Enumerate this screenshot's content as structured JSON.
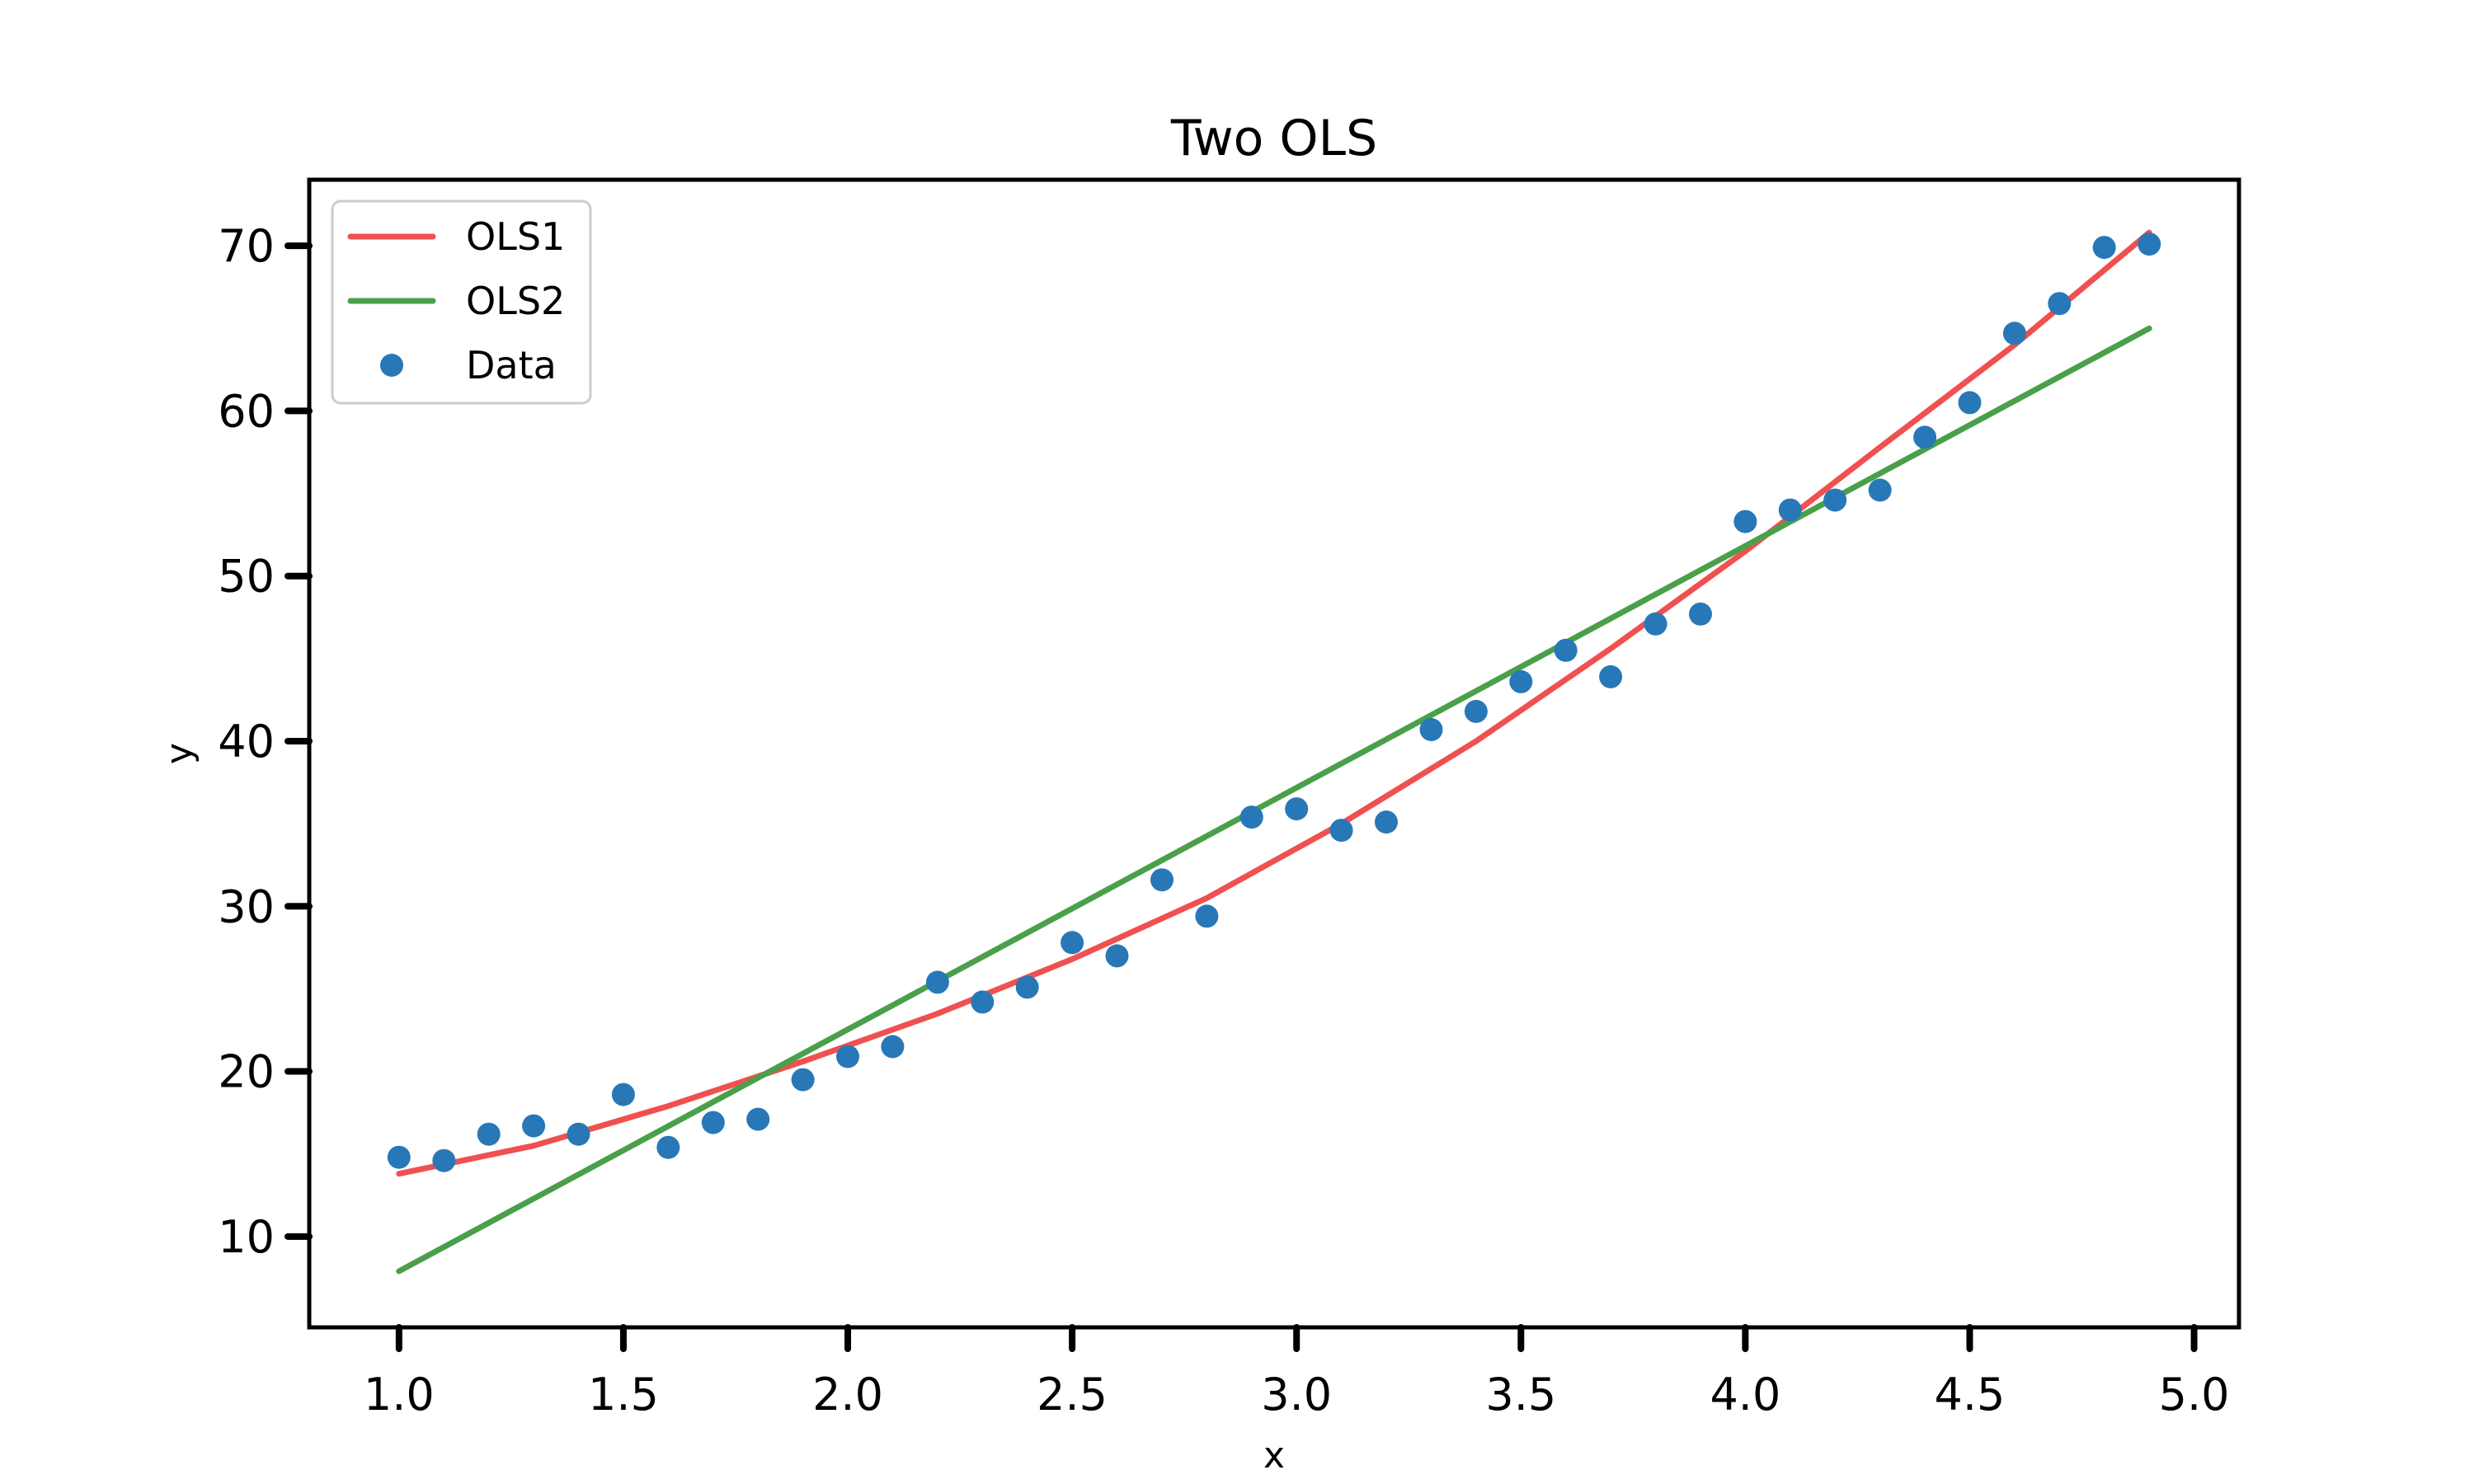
{
  "chart_data": {
    "type": "scatter",
    "title": "Two OLS",
    "xlabel": "x",
    "ylabel": "y",
    "xlim": [
      0.8,
      5.1
    ],
    "ylim": [
      4.5,
      74.0
    ],
    "xticks": [
      1.0,
      1.5,
      2.0,
      2.5,
      3.0,
      3.5,
      4.0,
      4.5,
      5.0
    ],
    "xtick_labels": [
      "1.0",
      "1.5",
      "2.0",
      "2.5",
      "3.0",
      "3.5",
      "4.0",
      "4.5",
      "5.0"
    ],
    "yticks": [
      10,
      20,
      30,
      40,
      50,
      60,
      70
    ],
    "ytick_labels": [
      "10",
      "20",
      "30",
      "40",
      "50",
      "60",
      "70"
    ],
    "grid": false,
    "legend_position": "top-left",
    "series": [
      {
        "name": "OLS1",
        "kind": "line",
        "color": "#f05050",
        "x": [
          1.0,
          1.3,
          1.6,
          1.9,
          2.2,
          2.5,
          2.8,
          3.1,
          3.4,
          3.7,
          4.0,
          4.3,
          4.6,
          4.9
        ],
        "y": [
          13.8,
          15.5,
          17.9,
          20.6,
          23.5,
          26.8,
          30.5,
          35.0,
          40.0,
          45.6,
          51.5,
          57.8,
          64.0,
          70.8
        ]
      },
      {
        "name": "OLS2",
        "kind": "line",
        "color": "#4aa04a",
        "x": [
          1.0,
          4.9
        ],
        "y": [
          7.9,
          65.0
        ]
      },
      {
        "name": "Data",
        "kind": "scatter",
        "color": "#2878b8",
        "x": [
          1.0,
          1.1,
          1.2,
          1.3,
          1.4,
          1.5,
          1.6,
          1.7,
          1.8,
          1.9,
          2.0,
          2.1,
          2.2,
          2.3,
          2.4,
          2.5,
          2.6,
          2.7,
          2.8,
          2.9,
          3.0,
          3.1,
          3.2,
          3.3,
          3.4,
          3.5,
          3.6,
          3.7,
          3.8,
          3.9,
          4.0,
          4.1,
          4.2,
          4.3,
          4.4,
          4.5,
          4.6,
          4.7,
          4.8,
          4.9
        ],
        "y": [
          14.8,
          14.6,
          16.2,
          16.7,
          16.2,
          18.6,
          15.4,
          16.9,
          17.1,
          19.5,
          20.9,
          21.5,
          25.4,
          24.2,
          25.1,
          27.8,
          27.0,
          31.6,
          29.4,
          35.4,
          35.9,
          34.6,
          35.1,
          40.7,
          41.8,
          43.6,
          45.5,
          43.9,
          47.1,
          47.7,
          53.3,
          54.0,
          54.6,
          55.2,
          58.4,
          60.5,
          64.7,
          66.5,
          69.9,
          70.1
        ]
      }
    ]
  }
}
